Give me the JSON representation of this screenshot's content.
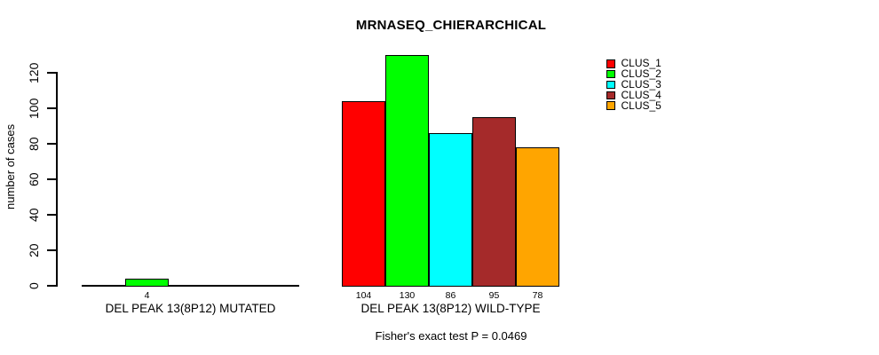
{
  "title": "MRNASEQ_CHIERARCHICAL",
  "chart_data": {
    "type": "bar",
    "title": "MRNASEQ_CHIERARCHICAL",
    "xlabel": "",
    "ylabel": "number of cases",
    "ylim": [
      0,
      130
    ],
    "yticks": [
      0,
      20,
      40,
      60,
      80,
      100,
      120
    ],
    "grid": false,
    "legend_position": "top-right",
    "annotation": "Fisher's exact test P = 0.0469",
    "clusters": [
      {
        "name": "CLUS_1",
        "color": "#FF0000"
      },
      {
        "name": "CLUS_2",
        "color": "#00FF00"
      },
      {
        "name": "CLUS_3",
        "color": "#00FFFF"
      },
      {
        "name": "CLUS_4",
        "color": "#A52A2A"
      },
      {
        "name": "CLUS_5",
        "color": "#FFA500"
      }
    ],
    "groups": [
      {
        "label": "DEL PEAK 13(8P12) MUTATED",
        "values": [
          0,
          4,
          0,
          0,
          0
        ]
      },
      {
        "label": "DEL PEAK 13(8P12) WILD-TYPE",
        "values": [
          104,
          130,
          86,
          95,
          78
        ]
      }
    ]
  }
}
